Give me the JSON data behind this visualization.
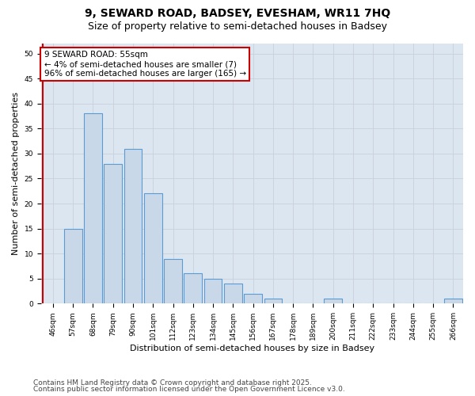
{
  "title_line1": "9, SEWARD ROAD, BADSEY, EVESHAM, WR11 7HQ",
  "title_line2": "Size of property relative to semi-detached houses in Badsey",
  "xlabel": "Distribution of semi-detached houses by size in Badsey",
  "ylabel": "Number of semi-detached properties",
  "categories": [
    "46sqm",
    "57sqm",
    "68sqm",
    "79sqm",
    "90sqm",
    "101sqm",
    "112sqm",
    "123sqm",
    "134sqm",
    "145sqm",
    "156sqm",
    "167sqm",
    "178sqm",
    "189sqm",
    "200sqm",
    "211sqm",
    "222sqm",
    "233sqm",
    "244sqm",
    "255sqm",
    "266sqm"
  ],
  "values": [
    0,
    15,
    38,
    28,
    31,
    22,
    9,
    6,
    5,
    4,
    2,
    1,
    0,
    0,
    1,
    0,
    0,
    0,
    0,
    0,
    1
  ],
  "bar_color": "#c8d8e8",
  "bar_edge_color": "#5b9bd5",
  "vline_x": 0.5,
  "annotation_title": "9 SEWARD ROAD: 55sqm",
  "annotation_line2": "← 4% of semi-detached houses are smaller (7)",
  "annotation_line3": "96% of semi-detached houses are larger (165) →",
  "annotation_box_color": "#ffffff",
  "annotation_box_edge": "#cc0000",
  "vline_color": "#cc0000",
  "ylim": [
    0,
    52
  ],
  "yticks": [
    0,
    5,
    10,
    15,
    20,
    25,
    30,
    35,
    40,
    45,
    50
  ],
  "grid_color": "#c8d0dc",
  "bg_color": "#dce6f1",
  "footnote_line1": "Contains HM Land Registry data © Crown copyright and database right 2025.",
  "footnote_line2": "Contains public sector information licensed under the Open Government Licence v3.0.",
  "title_fontsize": 10,
  "subtitle_fontsize": 9,
  "xlabel_fontsize": 8,
  "ylabel_fontsize": 8,
  "tick_fontsize": 6.5,
  "annotation_fontsize": 7.5,
  "footnote_fontsize": 6.5
}
